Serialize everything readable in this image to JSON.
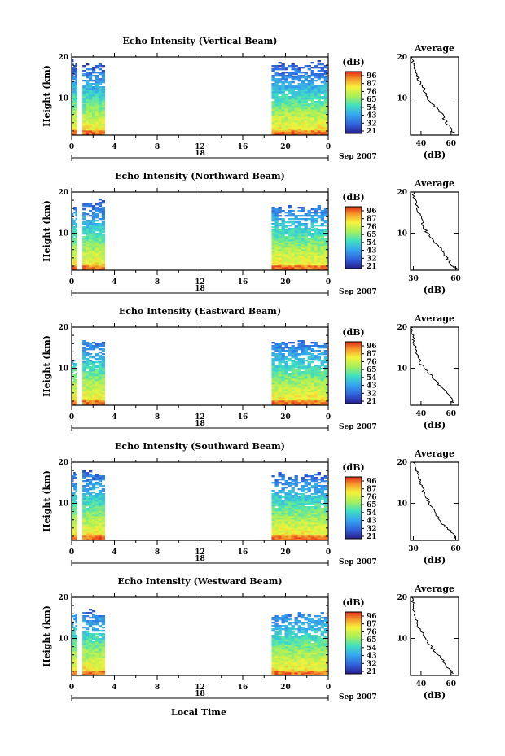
{
  "figure": {
    "xlabel": "Local Time",
    "date_suffix": "Sep 2007",
    "day_label": "18",
    "colorbar_title": "(dB)",
    "profile_title": "Average",
    "profile_xlabel": "(dB)",
    "ylabel": "Height (km)"
  },
  "chart_data": [
    {
      "type": "heatmap",
      "title": "Echo Intensity (Vertical Beam)",
      "ylabel": "Height (km)",
      "x_ticks": [
        "0",
        "4",
        "8",
        "12",
        "16",
        "20",
        "0"
      ],
      "xlim": [
        0,
        24
      ],
      "y_ticks": [
        "10",
        "20"
      ],
      "ylim": [
        1,
        20
      ],
      "data_segments": [
        {
          "start_hour": 0.0,
          "end_hour": 0.5,
          "top_km": 19.6
        },
        {
          "start_hour": 1.0,
          "end_hour": 3.1,
          "top_km": 19.0
        },
        {
          "start_hour": 18.7,
          "end_hour": 23.9,
          "top_km": 19.3
        }
      ],
      "colorbar": {
        "label": "(dB)",
        "ticks": [
          "96",
          "87",
          "76",
          "65",
          "54",
          "43",
          "32",
          "21"
        ],
        "range": [
          21,
          96
        ]
      },
      "profile": {
        "title": "Average",
        "xlabel": "(dB)",
        "x_ticks": [
          "40",
          "60"
        ],
        "xlim": [
          33,
          65
        ],
        "y_ticks": [
          "10",
          "20"
        ],
        "heights_km": [
          1.5,
          2,
          3,
          4,
          5,
          6,
          7,
          8,
          9,
          10,
          11,
          12,
          13,
          14,
          15,
          16,
          17,
          18,
          19,
          20
        ],
        "values_db": [
          62,
          60,
          59,
          57,
          55,
          54,
          52,
          49,
          46,
          44,
          43,
          42,
          41,
          39,
          38,
          37,
          36,
          35,
          34,
          34
        ]
      }
    },
    {
      "type": "heatmap",
      "title": "Echo Intensity (Northward Beam)",
      "ylabel": "Height (km)",
      "x_ticks": [
        "0",
        "4",
        "8",
        "12",
        "16",
        "20",
        "0"
      ],
      "xlim": [
        0,
        24
      ],
      "y_ticks": [
        "10",
        "20"
      ],
      "ylim": [
        1,
        20
      ],
      "data_segments": [
        {
          "start_hour": 0.0,
          "end_hour": 0.5,
          "top_km": 17.0
        },
        {
          "start_hour": 1.0,
          "end_hour": 3.1,
          "top_km": 18.3
        },
        {
          "start_hour": 18.7,
          "end_hour": 23.9,
          "top_km": 16.8
        }
      ],
      "colorbar": {
        "label": "(dB)",
        "ticks": [
          "96",
          "87",
          "76",
          "65",
          "54",
          "43",
          "32",
          "21"
        ],
        "range": [
          21,
          96
        ]
      },
      "profile": {
        "title": "Average",
        "xlabel": "(dB)",
        "x_ticks": [
          "30",
          "60"
        ],
        "xlim": [
          28,
          62
        ],
        "y_ticks": [
          "10",
          "20"
        ],
        "heights_km": [
          1.5,
          2,
          3,
          4,
          5,
          6,
          7,
          8,
          9,
          10,
          11,
          12,
          13,
          14,
          15,
          16,
          17,
          18,
          19,
          20
        ],
        "values_db": [
          60,
          58,
          56,
          54,
          52,
          50,
          48,
          45,
          43,
          40,
          38,
          37,
          36,
          35,
          34,
          33,
          32,
          31,
          30,
          30
        ]
      }
    },
    {
      "type": "heatmap",
      "title": "Echo Intensity (Eastward Beam)",
      "ylabel": "Height (km)",
      "x_ticks": [
        "0",
        "4",
        "8",
        "12",
        "16",
        "20",
        "0"
      ],
      "xlim": [
        0,
        24
      ],
      "y_ticks": [
        "10",
        "20"
      ],
      "ylim": [
        1,
        20
      ],
      "data_segments": [
        {
          "start_hour": 0.0,
          "end_hour": 0.5,
          "top_km": 13.0
        },
        {
          "start_hour": 1.0,
          "end_hour": 3.1,
          "top_km": 17.2
        },
        {
          "start_hour": 18.7,
          "end_hour": 23.9,
          "top_km": 17.0
        }
      ],
      "colorbar": {
        "label": "(dB)",
        "ticks": [
          "96",
          "87",
          "76",
          "65",
          "54",
          "43",
          "32",
          "21"
        ],
        "range": [
          21,
          96
        ]
      },
      "profile": {
        "title": "Average",
        "xlabel": "(dB)",
        "x_ticks": [
          "40",
          "60"
        ],
        "xlim": [
          33,
          65
        ],
        "y_ticks": [
          "10",
          "20"
        ],
        "heights_km": [
          1.5,
          2,
          3,
          4,
          5,
          6,
          7,
          8,
          9,
          10,
          11,
          12,
          13,
          14,
          15,
          16,
          17,
          18,
          19,
          20
        ],
        "values_db": [
          62,
          61,
          59,
          57,
          55,
          52,
          50,
          47,
          45,
          42,
          40,
          39,
          38,
          37,
          36,
          36,
          35,
          35,
          34,
          34
        ]
      }
    },
    {
      "type": "heatmap",
      "title": "Echo Intensity (Southward Beam)",
      "ylabel": "Height (km)",
      "x_ticks": [
        "0",
        "4",
        "8",
        "12",
        "16",
        "20",
        "0"
      ],
      "xlim": [
        0,
        24
      ],
      "y_ticks": [
        "10",
        "20"
      ],
      "ylim": [
        1,
        20
      ],
      "data_segments": [
        {
          "start_hour": 0.0,
          "end_hour": 0.5,
          "top_km": 17.5
        },
        {
          "start_hour": 1.0,
          "end_hour": 3.1,
          "top_km": 18.2
        },
        {
          "start_hour": 18.7,
          "end_hour": 23.9,
          "top_km": 17.8
        }
      ],
      "colorbar": {
        "label": "(dB)",
        "ticks": [
          "96",
          "87",
          "76",
          "65",
          "54",
          "43",
          "32",
          "21"
        ],
        "range": [
          21,
          96
        ]
      },
      "profile": {
        "title": "Average",
        "xlabel": "(dB)",
        "x_ticks": [
          "30",
          "60"
        ],
        "xlim": [
          28,
          62
        ],
        "y_ticks": [
          "10",
          "20"
        ],
        "heights_km": [
          1.5,
          2,
          3,
          4,
          5,
          6,
          7,
          8,
          9,
          10,
          11,
          12,
          13,
          14,
          15,
          16,
          17,
          18,
          19,
          20
        ],
        "values_db": [
          60,
          59,
          57,
          54,
          51,
          49,
          47,
          45,
          43,
          41,
          40,
          38,
          37,
          36,
          35,
          34,
          33,
          32,
          31,
          30
        ]
      }
    },
    {
      "type": "heatmap",
      "title": "Echo Intensity (Westward Beam)",
      "ylabel": "Height (km)",
      "x_ticks": [
        "0",
        "4",
        "8",
        "12",
        "16",
        "20",
        "0"
      ],
      "xlim": [
        0,
        24
      ],
      "y_ticks": [
        "10",
        "20"
      ],
      "ylim": [
        1,
        20
      ],
      "data_segments": [
        {
          "start_hour": 0.0,
          "end_hour": 0.5,
          "top_km": 17.0
        },
        {
          "start_hour": 1.0,
          "end_hour": 3.1,
          "top_km": 17.2
        },
        {
          "start_hour": 18.7,
          "end_hour": 23.9,
          "top_km": 16.5
        }
      ],
      "colorbar": {
        "label": "(dB)",
        "ticks": [
          "96",
          "87",
          "76",
          "65",
          "54",
          "43",
          "32",
          "21"
        ],
        "range": [
          21,
          96
        ]
      },
      "profile": {
        "title": "Average",
        "xlabel": "(dB)",
        "x_ticks": [
          "40",
          "60"
        ],
        "xlim": [
          33,
          65
        ],
        "y_ticks": [
          "10",
          "20"
        ],
        "heights_km": [
          1.5,
          2,
          3,
          4,
          5,
          6,
          7,
          8,
          9,
          10,
          11,
          12,
          13,
          14,
          15,
          16,
          17,
          18,
          19,
          20
        ],
        "values_db": [
          62,
          60,
          58,
          56,
          54,
          52,
          49,
          47,
          45,
          43,
          41,
          40,
          38,
          37,
          36,
          36,
          35,
          35,
          34,
          34
        ]
      }
    }
  ]
}
